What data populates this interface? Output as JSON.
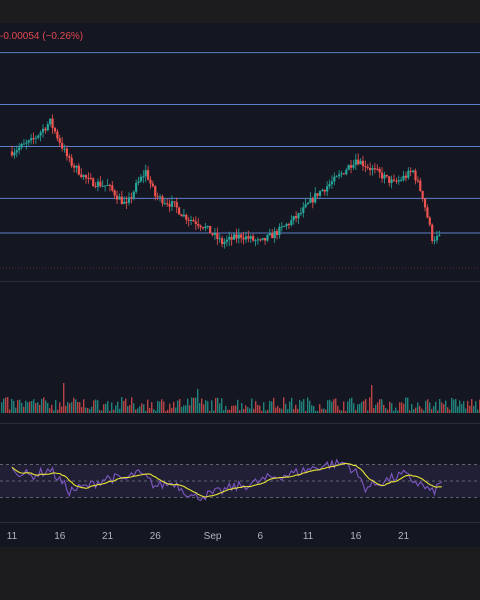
{
  "header": {
    "change_text": "-0.00054 (−0.26%)"
  },
  "colors": {
    "background": "#141722",
    "frame": "#1c1c1e",
    "up_candle": "#26a69a",
    "down_candle": "#ef5350",
    "level_line": "#5b7fc8",
    "rsi_line": "#7e57c2",
    "rsi_ma_line": "#e8e337",
    "rsi_band": "#7e57c2"
  },
  "x_axis": {
    "ticks": [
      {
        "label": "11",
        "day": 0
      },
      {
        "label": "16",
        "day": 5
      },
      {
        "label": "21",
        "day": 10
      },
      {
        "label": "26",
        "day": 15
      },
      {
        "label": "Sep",
        "day": 21
      },
      {
        "label": "6",
        "day": 26
      },
      {
        "label": "11",
        "day": 31
      },
      {
        "label": "16",
        "day": 36
      },
      {
        "label": "21",
        "day": 41
      }
    ]
  },
  "chart_data": [
    {
      "type": "candlestick",
      "y_range": [
        0,
        100
      ],
      "price_levels": [
        88,
        67,
        50,
        29,
        15
      ],
      "close_anchors": [
        [
          0,
          48
        ],
        [
          2,
          52
        ],
        [
          4,
          60
        ],
        [
          6,
          44
        ],
        [
          8,
          36
        ],
        [
          10,
          34
        ],
        [
          12,
          26
        ],
        [
          13,
          34
        ],
        [
          14,
          40
        ],
        [
          15,
          30
        ],
        [
          17,
          26
        ],
        [
          18,
          22
        ],
        [
          20,
          18
        ],
        [
          22,
          11
        ],
        [
          24,
          14
        ],
        [
          26,
          11
        ],
        [
          28,
          16
        ],
        [
          30,
          22
        ],
        [
          32,
          31
        ],
        [
          34,
          37
        ],
        [
          36,
          45
        ],
        [
          38,
          40
        ],
        [
          40,
          35
        ],
        [
          42,
          40
        ],
        [
          43,
          30
        ],
        [
          44,
          13
        ],
        [
          45,
          13
        ]
      ],
      "candles_per_day": 4,
      "volatility": 3.2
    },
    {
      "type": "bar",
      "series": "volume",
      "baseline": 0,
      "spikes": [
        [
          31,
          30
        ],
        [
          98,
          24
        ],
        [
          185,
          28
        ]
      ]
    },
    {
      "type": "line",
      "series": [
        "RSI",
        "RSI-MA"
      ],
      "y_range": [
        0,
        100
      ],
      "bands": [
        70,
        50,
        30
      ],
      "rsi_anchors": [
        [
          0,
          64
        ],
        [
          2,
          56
        ],
        [
          4,
          64
        ],
        [
          6,
          38
        ],
        [
          8,
          44
        ],
        [
          10,
          54
        ],
        [
          12,
          52
        ],
        [
          13,
          60
        ],
        [
          14,
          54
        ],
        [
          15,
          44
        ],
        [
          17,
          48
        ],
        [
          19,
          30
        ],
        [
          21,
          34
        ],
        [
          23,
          42
        ],
        [
          25,
          46
        ],
        [
          27,
          54
        ],
        [
          29,
          58
        ],
        [
          31,
          64
        ],
        [
          33,
          70
        ],
        [
          35,
          72
        ],
        [
          36,
          60
        ],
        [
          37,
          42
        ],
        [
          39,
          50
        ],
        [
          41,
          58
        ],
        [
          43,
          44
        ],
        [
          44,
          36
        ],
        [
          45,
          48
        ]
      ]
    }
  ]
}
